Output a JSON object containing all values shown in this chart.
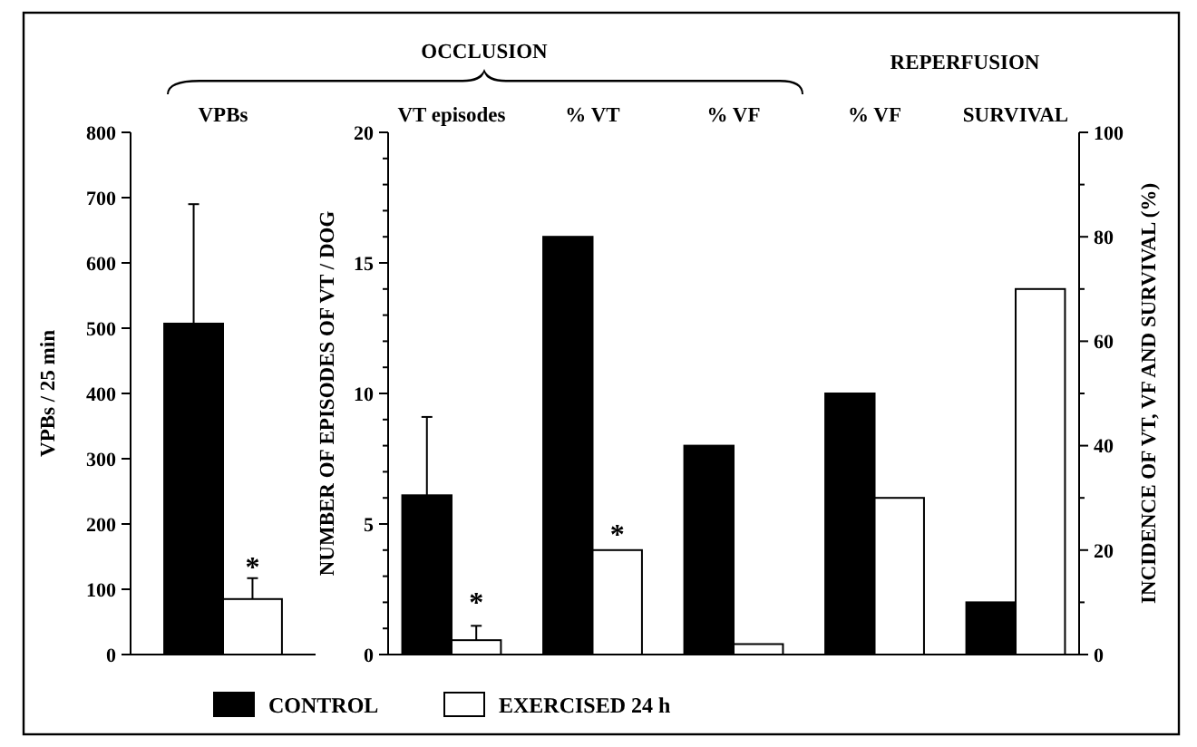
{
  "chart_data": [
    {
      "type": "bar",
      "ylabel": "VPBs / 25 min",
      "categories": [
        "VPBs"
      ],
      "ylim": [
        0,
        800
      ],
      "yticks": [
        0,
        100,
        200,
        300,
        400,
        500,
        600,
        700,
        800
      ],
      "legend": "bottom",
      "series": [
        {
          "name": "CONTROL",
          "color": "#000000",
          "values": [
            507
          ],
          "errors": [
            183
          ]
        },
        {
          "name": "EXERCISED 24 h",
          "color": "#ffffff",
          "values": [
            85
          ],
          "errors": [
            32
          ]
        }
      ],
      "annotations": [
        {
          "text": "*",
          "x": "VPBs",
          "y": 150
        }
      ]
    },
    {
      "type": "bar",
      "ylabel": "NUMBER OF EPISODES OF VT / DOG",
      "y2label": "INCIDENCE OF VT, VF AND SURVIVAL (%)",
      "categories": [
        "VT episodes",
        "% VT",
        "% VF",
        "% VF",
        "SURVIVAL"
      ],
      "ylim": [
        0,
        20
      ],
      "yticks": [
        0,
        {
          "value": 1,
          "label": null
        },
        {
          "value": 2,
          "label": null
        },
        {
          "value": 3,
          "label": null
        },
        {
          "value": 4,
          "label": null
        },
        5,
        {
          "value": 6,
          "label": null
        },
        {
          "value": 7,
          "label": null
        },
        {
          "value": 8,
          "label": null
        },
        {
          "value": 9,
          "label": null
        },
        10,
        {
          "value": 11,
          "label": null
        },
        {
          "value": 12,
          "label": null
        },
        {
          "value": 13,
          "label": null
        },
        {
          "value": 14,
          "label": null
        },
        15,
        {
          "value": 16,
          "label": null
        },
        {
          "value": 17,
          "label": null
        },
        {
          "value": 18,
          "label": null
        },
        {
          "value": 19,
          "label": null
        },
        20
      ],
      "y2lim": [
        0,
        100
      ],
      "y2ticks": [
        0,
        {
          "value": 10,
          "label": null
        },
        20,
        {
          "value": 30,
          "label": null
        },
        40,
        {
          "value": 50,
          "label": null
        },
        60,
        {
          "value": 70,
          "label": null
        },
        80,
        {
          "value": 90,
          "label": null
        },
        100
      ],
      "series": [
        {
          "color": "#000000",
          "values": [
            6.1,
            null,
            null,
            null,
            null
          ],
          "errors": [
            3,
            null,
            null,
            null,
            null
          ]
        },
        {
          "color": "#ffffff",
          "values": [
            0.55,
            null,
            null,
            null,
            null
          ],
          "errors": [
            0.55,
            null,
            null,
            null,
            null
          ]
        },
        {
          "color": "#000000",
          "axis": "y2",
          "values": [
            null,
            80,
            40,
            50,
            10
          ]
        },
        {
          "color": "#ffffff",
          "axis": "y2",
          "values": [
            null,
            20,
            2,
            30,
            70
          ]
        }
      ],
      "annotations": [
        "OCCLUSION",
        "REPERFUSION",
        {
          "text": "*",
          "x": "VT episodes",
          "y": 2.4
        },
        {
          "text": "*",
          "x": "% VT",
          "y": 5
        }
      ]
    }
  ]
}
